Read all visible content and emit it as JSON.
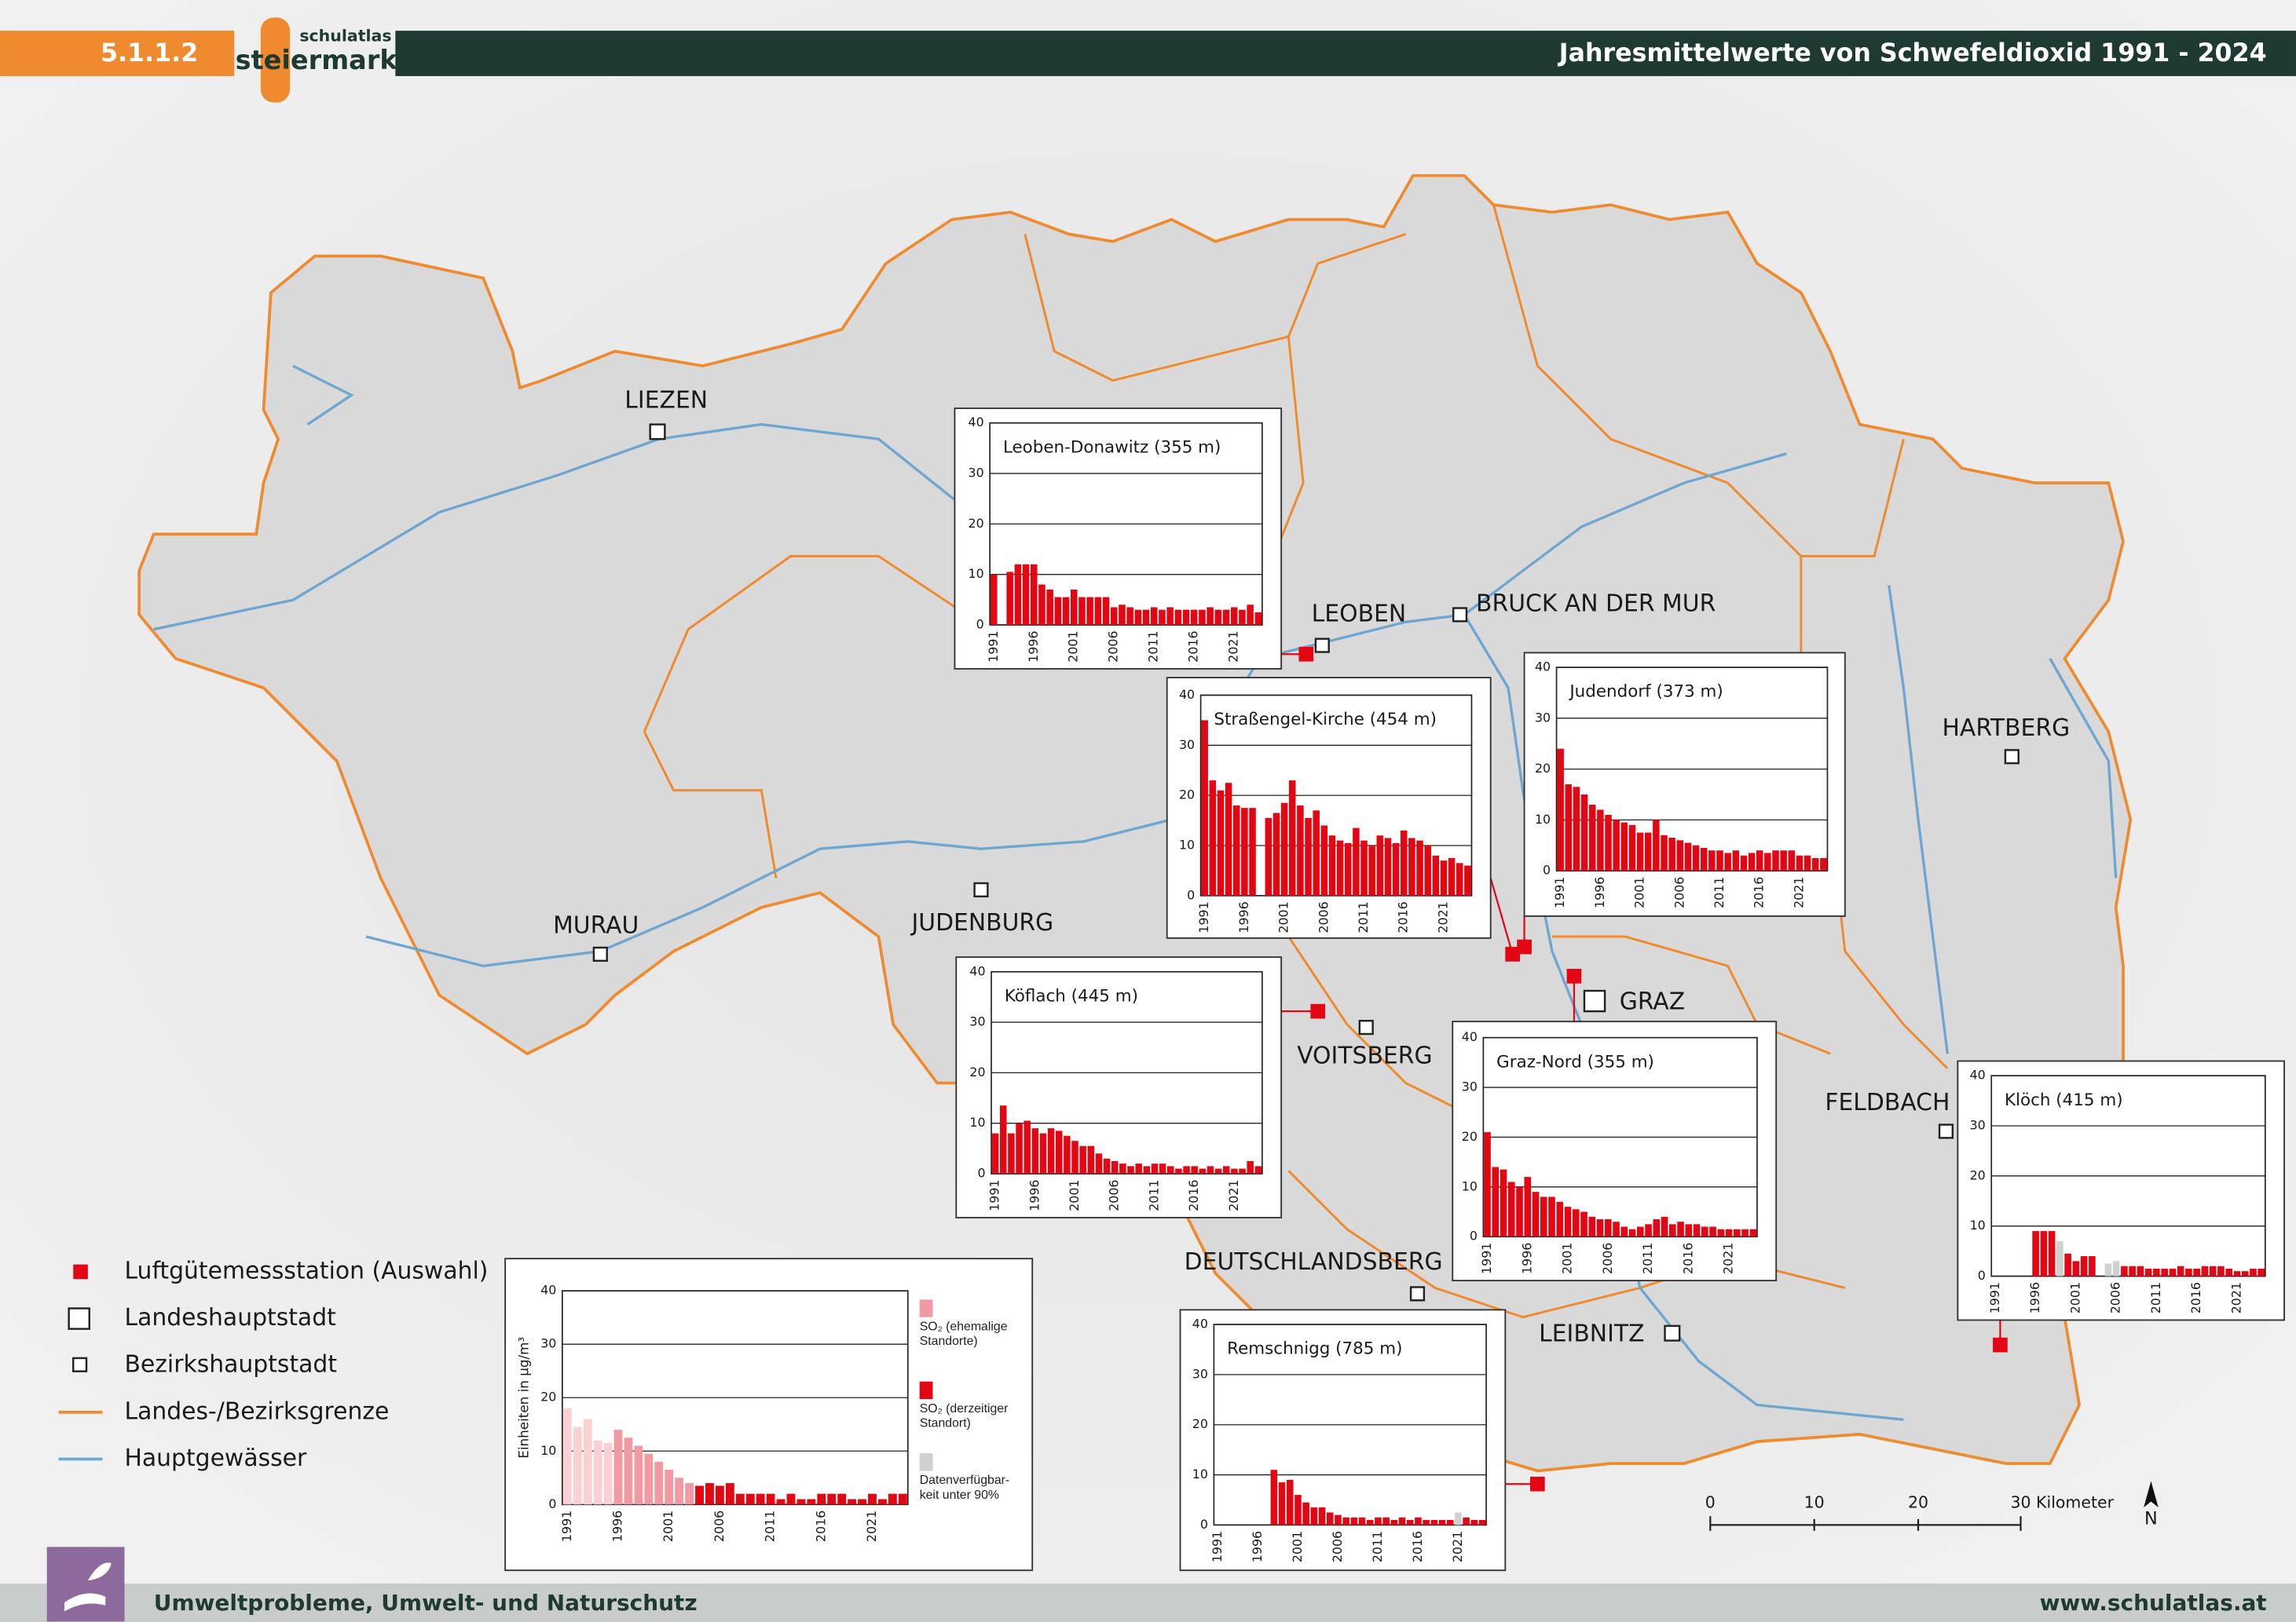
{
  "header": {
    "section": "5.1.1.2",
    "logo_top": "schulatlas",
    "logo_bottom": "steiermark",
    "title": "Jahresmittelwerte von Schwefeldioxid 1991 - 2024"
  },
  "cities": [
    "LIEZEN",
    "LEOBEN",
    "BRUCK AN DER MUR",
    "HARTBERG",
    "MURAU",
    "JUDENBURG",
    "VOITSBERG",
    "GRAZ",
    "FELDBACH",
    "DEUTSCHLANDSBERG",
    "LEIBNITZ"
  ],
  "legend": [
    "Luftgütemessstation (Auswahl)",
    "Landeshauptstadt",
    "Bezirkshauptstadt",
    "Landes-/Bezirksgrenze",
    "Hauptgewässer"
  ],
  "scale": {
    "labels": [
      "0",
      "10",
      "20",
      "30 Kilometer"
    ]
  },
  "north": "N",
  "footer": {
    "topic": "Umweltprobleme, Umwelt- und Naturschutz",
    "url": "www.schulatlas.at"
  },
  "chart_data": [
    {
      "type": "bar",
      "title": "Leoben-Donawitz (355 m)",
      "color": "#e30613",
      "ylim": [
        0,
        40
      ],
      "yticks": [
        0,
        10,
        20,
        30,
        40
      ],
      "grid": true,
      "categories": [
        "1991",
        null,
        null,
        null,
        null,
        "1996",
        null,
        null,
        null,
        null,
        "2001",
        null,
        null,
        null,
        null,
        "2006",
        null,
        null,
        null,
        null,
        "2011",
        null,
        null,
        null,
        null,
        "2016",
        null,
        null,
        null,
        null,
        "2021",
        null,
        null,
        null
      ],
      "values": [
        10,
        null,
        10.5,
        12,
        12,
        12,
        8,
        7,
        5.5,
        5.5,
        7,
        5.5,
        5.5,
        5.5,
        5.5,
        3.5,
        4,
        3.5,
        3,
        3,
        3.5,
        3,
        3.5,
        3,
        3,
        3,
        3,
        3.5,
        3,
        3,
        3.5,
        3,
        4,
        2.5
      ]
    },
    {
      "type": "bar",
      "title": "Straßengel-Kirche (454 m)",
      "color": "#e30613",
      "ylim": [
        0,
        40
      ],
      "yticks": [
        0,
        10,
        20,
        30,
        40
      ],
      "grid": true,
      "categories": [
        "1991",
        null,
        null,
        null,
        null,
        "1996",
        null,
        null,
        null,
        null,
        "2001",
        null,
        null,
        null,
        null,
        "2006",
        null,
        null,
        null,
        null,
        "2011",
        null,
        null,
        null,
        null,
        "2016",
        null,
        null,
        null,
        null,
        "2021",
        null,
        null,
        null
      ],
      "values": [
        35,
        23,
        21,
        22.5,
        18,
        17.5,
        17.5,
        null,
        15.5,
        16.5,
        18.5,
        23,
        18,
        15.5,
        17,
        14,
        12,
        11,
        10.5,
        13.5,
        11,
        10,
        12,
        11.5,
        10.5,
        13,
        11.5,
        11,
        10,
        8,
        7,
        7.5,
        6.5,
        6
      ]
    },
    {
      "type": "bar",
      "title": "Judendorf (373 m)",
      "color": "#e30613",
      "ylim": [
        0,
        40
      ],
      "yticks": [
        0,
        10,
        20,
        30,
        40
      ],
      "grid": true,
      "categories": [
        "1991",
        null,
        null,
        null,
        null,
        "1996",
        null,
        null,
        null,
        null,
        "2001",
        null,
        null,
        null,
        null,
        "2006",
        null,
        null,
        null,
        null,
        "2011",
        null,
        null,
        null,
        null,
        "2016",
        null,
        null,
        null,
        null,
        "2021",
        null,
        null,
        null
      ],
      "values": [
        24,
        17,
        16.5,
        15,
        13,
        12,
        11,
        10,
        9.5,
        9,
        7.5,
        7.5,
        10,
        7,
        6.5,
        6,
        5.5,
        5,
        4.5,
        4,
        4,
        3.5,
        4,
        3,
        3.5,
        4,
        3.5,
        4,
        4,
        4,
        3,
        3,
        2.5,
        2.5
      ]
    },
    {
      "type": "bar",
      "title": "Köflach (445 m)",
      "color": "#e30613",
      "ylim": [
        0,
        40
      ],
      "yticks": [
        0,
        10,
        20,
        30,
        40
      ],
      "grid": true,
      "categories": [
        "1991",
        null,
        null,
        null,
        null,
        "1996",
        null,
        null,
        null,
        null,
        "2001",
        null,
        null,
        null,
        null,
        "2006",
        null,
        null,
        null,
        null,
        "2011",
        null,
        null,
        null,
        null,
        "2016",
        null,
        null,
        null,
        null,
        "2021",
        null,
        null,
        null
      ],
      "values": [
        8,
        13.5,
        8,
        10,
        10.5,
        9,
        8,
        9,
        8.5,
        7.5,
        6.5,
        5.5,
        5.5,
        4,
        3,
        2.5,
        2,
        1.5,
        2,
        1.5,
        2,
        2,
        1.5,
        1,
        1.5,
        1.5,
        1,
        1.5,
        1,
        1.5,
        1,
        1,
        2.5,
        1.5
      ]
    },
    {
      "type": "bar",
      "title": "Graz-Nord (355 m)",
      "color": "#e30613",
      "ylim": [
        0,
        40
      ],
      "yticks": [
        0,
        10,
        20,
        30,
        40
      ],
      "grid": true,
      "categories": [
        "1991",
        null,
        null,
        null,
        null,
        "1996",
        null,
        null,
        null,
        null,
        "2001",
        null,
        null,
        null,
        null,
        "2006",
        null,
        null,
        null,
        null,
        "2011",
        null,
        null,
        null,
        null,
        "2016",
        null,
        null,
        null,
        null,
        "2021",
        null,
        null,
        null
      ],
      "values": [
        21,
        14,
        13.5,
        11,
        10,
        12,
        9,
        8,
        8,
        7,
        6,
        5.5,
        5,
        4,
        3.5,
        3.5,
        3,
        2,
        1.5,
        2,
        2.5,
        3.5,
        4,
        2.5,
        3,
        2.5,
        2.5,
        2,
        2,
        1.5,
        1.5,
        1.5,
        1.5,
        1.5
      ]
    },
    {
      "type": "bar",
      "title": "Klöch (415 m)",
      "color": "#e30613",
      "ylim": [
        0,
        40
      ],
      "yticks": [
        0,
        10,
        20,
        30,
        40
      ],
      "grid": true,
      "categories": [
        "1991",
        null,
        null,
        null,
        null,
        "1996",
        null,
        null,
        null,
        null,
        "2001",
        null,
        null,
        null,
        null,
        "2006",
        null,
        null,
        null,
        null,
        "2011",
        null,
        null,
        null,
        null,
        "2016",
        null,
        null,
        null,
        null,
        "2021",
        null,
        null,
        null
      ],
      "values": [
        null,
        null,
        null,
        null,
        null,
        9,
        9,
        9,
        7,
        4.5,
        3,
        4,
        4,
        null,
        2.5,
        3,
        2,
        2,
        2,
        1.5,
        1.5,
        1.5,
        1.5,
        2,
        1.5,
        1.5,
        2,
        2,
        2,
        1.5,
        1,
        1,
        1.5,
        1.5
      ],
      "bar_colors": [
        "#e30613",
        "#e30613",
        "#e30613",
        "#e30613",
        "#e30613",
        "#e30613",
        "#e30613",
        "#e30613",
        "#d0d0d0",
        "#e30613",
        "#e30613",
        "#e30613",
        "#e30613",
        "#e30613",
        "#d0d0d0",
        "#d0d0d0",
        "#e30613",
        "#e30613",
        "#e30613",
        "#e30613",
        "#e30613",
        "#e30613",
        "#e30613",
        "#e30613",
        "#e30613",
        "#e30613",
        "#e30613",
        "#e30613",
        "#e30613",
        "#e30613",
        "#e30613",
        "#e30613",
        "#e30613",
        "#e30613"
      ]
    },
    {
      "type": "bar",
      "title": "Remschnigg (785 m)",
      "color": "#e30613",
      "ylim": [
        0,
        40
      ],
      "yticks": [
        0,
        10,
        20,
        30,
        40
      ],
      "grid": true,
      "categories": [
        "1991",
        null,
        null,
        null,
        null,
        "1996",
        null,
        null,
        null,
        null,
        "2001",
        null,
        null,
        null,
        null,
        "2006",
        null,
        null,
        null,
        null,
        "2011",
        null,
        null,
        null,
        null,
        "2016",
        null,
        null,
        null,
        null,
        "2021",
        null,
        null,
        null
      ],
      "values": [
        null,
        null,
        null,
        null,
        null,
        null,
        null,
        11,
        8.5,
        9,
        6,
        4.5,
        3.5,
        3.5,
        2.5,
        2,
        1.5,
        1.5,
        1.5,
        1,
        1.5,
        1.5,
        1,
        1.5,
        1,
        1.5,
        1,
        1,
        1,
        1,
        2.5,
        1.5,
        1,
        1
      ],
      "bar_colors": [
        "#e30613",
        "#e30613",
        "#e30613",
        "#e30613",
        "#e30613",
        "#e30613",
        "#e30613",
        "#e30613",
        "#e30613",
        "#e30613",
        "#e30613",
        "#e30613",
        "#e30613",
        "#e30613",
        "#e30613",
        "#e30613",
        "#e30613",
        "#e30613",
        "#e30613",
        "#e30613",
        "#e30613",
        "#e30613",
        "#e30613",
        "#e30613",
        "#e30613",
        "#e30613",
        "#e30613",
        "#e30613",
        "#e30613",
        "#e30613",
        "#d0d0d0",
        "#e30613",
        "#e30613",
        "#e30613"
      ]
    },
    {
      "type": "bar",
      "y_label": "Einheiten in µg/m³",
      "color": "#e30613",
      "ylim": [
        0,
        40
      ],
      "yticks": [
        0,
        10,
        20,
        30,
        40
      ],
      "grid": true,
      "categories": [
        "1991",
        null,
        null,
        null,
        null,
        "1996",
        null,
        null,
        null,
        null,
        "2001",
        null,
        null,
        null,
        null,
        "2006",
        null,
        null,
        null,
        null,
        "2011",
        null,
        null,
        null,
        null,
        "2016",
        null,
        null,
        null,
        null,
        "2021",
        null,
        null,
        null
      ],
      "values": [
        18,
        14.5,
        16,
        12,
        11.5,
        14,
        12.5,
        11,
        9.5,
        8,
        6.5,
        5,
        4,
        3.5,
        4,
        3.5,
        4,
        2,
        2,
        2,
        2,
        1,
        2,
        1,
        1,
        2,
        2,
        2,
        1,
        1,
        2,
        1,
        2,
        2
      ],
      "bar_colors": [
        "#fbd0d3",
        "#fbd0d3",
        "#fbd0d3",
        "#fbd0d3",
        "#fbd0d3",
        "#f29aa2",
        "#f29aa2",
        "#f29aa2",
        "#f29aa2",
        "#f29aa2",
        "#f29aa2",
        "#f29aa2",
        "#f29aa2",
        "#e30613",
        "#e30613",
        "#e30613",
        "#e30613",
        "#e30613",
        "#e30613",
        "#e30613",
        "#e30613",
        "#e30613",
        "#e30613",
        "#e30613",
        "#e30613",
        "#e30613",
        "#e30613",
        "#e30613",
        "#e30613",
        "#e30613",
        "#e30613",
        "#e30613",
        "#e30613",
        "#e30613"
      ],
      "legend": [
        {
          "name": "SO₂ (ehemalige Standorte)",
          "color": "#f29aa2"
        },
        {
          "name": "SO₂ (derzeitiger Standort)",
          "color": "#e30613"
        },
        {
          "name": "Daten­verfügbar­keit unter 90%",
          "color": "#d0d0d0"
        }
      ]
    }
  ]
}
